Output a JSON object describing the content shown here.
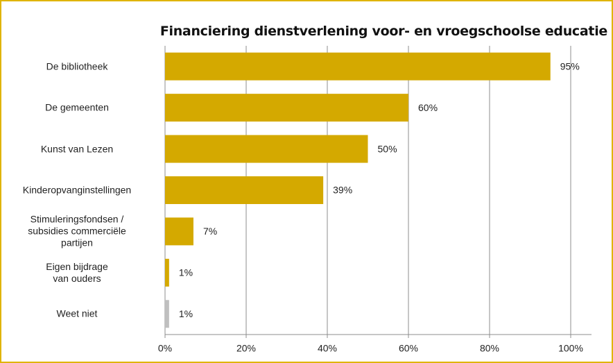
{
  "chart_data": {
    "type": "barh",
    "title": "Financiering dienstverlening voor- en vroegschoolse educatie",
    "categories": [
      "De bibliotheek",
      "De gemeenten",
      "Kunst van Lezen",
      "Kinderopvanginstellingen",
      "Stimuleringsfondsen /\nsubsidies commerciële\npartijen",
      "Eigen bijdrage\nvan ouders",
      "Weet niet"
    ],
    "values": [
      95,
      60,
      50,
      39,
      7,
      1,
      1
    ],
    "value_labels": [
      "95%",
      "60%",
      "50%",
      "39%",
      "7%",
      "1%",
      "1%"
    ],
    "colors": [
      "#d4a900",
      "#d4a900",
      "#d4a900",
      "#d4a900",
      "#d4a900",
      "#d4a900",
      "#bfbfbf"
    ],
    "xlim": [
      0,
      100
    ],
    "xticks": [
      {
        "value": 0,
        "label": "0%"
      },
      {
        "value": 20,
        "label": "20%"
      },
      {
        "value": 40,
        "label": "40%"
      },
      {
        "value": 60,
        "label": "60%"
      },
      {
        "value": 80,
        "label": "80%"
      },
      {
        "value": 100,
        "label": "100%"
      }
    ],
    "grid": true
  }
}
